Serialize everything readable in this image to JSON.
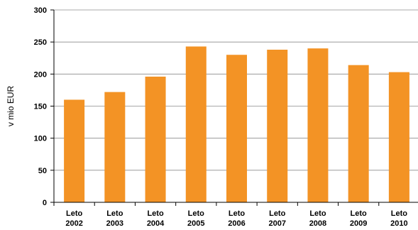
{
  "chart_data": {
    "type": "bar",
    "categories": [
      [
        "Leto",
        "2002"
      ],
      [
        "Leto",
        "2003"
      ],
      [
        "Leto",
        "2004"
      ],
      [
        "Leto",
        "2005"
      ],
      [
        "Leto",
        "2006"
      ],
      [
        "Leto",
        "2007"
      ],
      [
        "Leto",
        "2008"
      ],
      [
        "Leto",
        "2009"
      ],
      [
        "Leto",
        "2010"
      ]
    ],
    "values": [
      160,
      172,
      196,
      243,
      230,
      238,
      240,
      214,
      203
    ],
    "title": "",
    "xlabel": "",
    "ylabel": "v mio EUR",
    "ylim": [
      0,
      300
    ],
    "yticks": [
      0,
      50,
      100,
      150,
      200,
      250,
      300
    ],
    "grid": "horizontal",
    "legend": "none",
    "bar_color": "#f39325"
  }
}
